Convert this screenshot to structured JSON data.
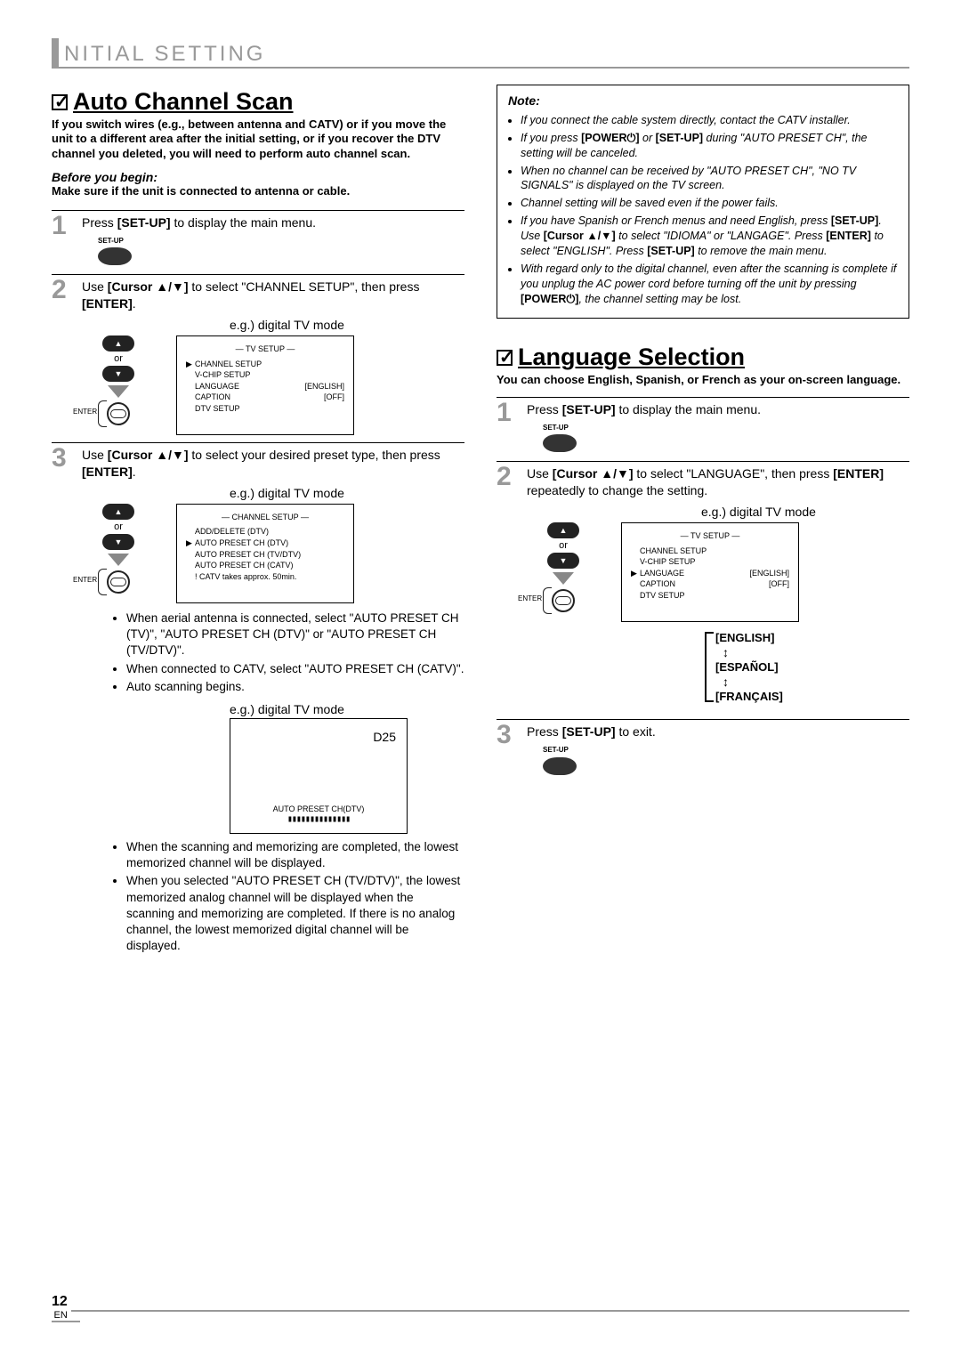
{
  "header": {
    "title": "NITIAL SETTING"
  },
  "page": {
    "number": "12",
    "lang": "EN"
  },
  "left": {
    "section_title": "Auto Channel Scan",
    "intro": "If you switch wires (e.g., between antenna and CATV) or if you move the unit to a different area after the initial setting, or if you recover the DTV channel you deleted, you will need to perform auto channel scan.",
    "before_begin_label": "Before you begin:",
    "before_begin_text": "Make sure if the unit is connected to antenna or cable.",
    "step1": {
      "pre": "Press ",
      "btn": "[SET-UP]",
      "post": " to display the main menu.",
      "setup_label": "SET-UP"
    },
    "step2": {
      "pre": "Use ",
      "btn": "[Cursor ▲/▼]",
      "mid": " to select \"CHANNEL SETUP\", then press ",
      "btn2": "[ENTER]",
      "post": ".",
      "eg": "e.g.) digital TV mode",
      "remote_or": "or",
      "enter_label": "ENTER",
      "screen": {
        "hdr": "—  TV SETUP  —",
        "rows": [
          {
            "mark": "▶",
            "label": "CHANNEL SETUP",
            "val": ""
          },
          {
            "mark": "",
            "label": "V-CHIP  SETUP",
            "val": ""
          },
          {
            "mark": "",
            "label": "LANGUAGE",
            "val": "[ENGLISH]"
          },
          {
            "mark": "",
            "label": "CAPTION",
            "val": "[OFF]"
          },
          {
            "mark": "",
            "label": "DTV SETUP",
            "val": ""
          }
        ]
      }
    },
    "step3": {
      "pre": "Use ",
      "btn": "[Cursor ▲/▼]",
      "mid": " to select your desired preset type, then press ",
      "btn2": "[ENTER]",
      "post": ".",
      "eg": "e.g.) digital TV mode",
      "remote_or": "or",
      "enter_label": "ENTER",
      "screen": {
        "hdr": "—  CHANNEL SETUP  —",
        "rows": [
          {
            "mark": "",
            "label": "ADD/DELETE (DTV)",
            "val": ""
          },
          {
            "mark": "▶",
            "label": "AUTO PRESET CH (DTV)",
            "val": ""
          },
          {
            "mark": "",
            "label": "AUTO PRESET CH (TV/DTV)",
            "val": ""
          },
          {
            "mark": "",
            "label": "AUTO PRESET CH (CATV)",
            "val": ""
          },
          {
            "mark": "",
            "label": "! CATV takes approx. 50min.",
            "val": ""
          }
        ]
      },
      "bullets": [
        "When aerial antenna is connected, select \"AUTO PRESET CH (TV)\", \"AUTO PRESET CH (DTV)\" or \"AUTO PRESET CH (TV/DTV)\".",
        "When connected to CATV, select \"AUTO PRESET CH (CATV)\".",
        "Auto scanning begins."
      ],
      "eg2": "e.g.) digital TV mode",
      "scan": {
        "ch": "D25",
        "label": "AUTO PRESET CH(DTV)",
        "bar": "▮▮▮▮▮▮▮▮▮▮▮▮▮▮"
      },
      "bullets2": [
        "When the scanning and memorizing are completed, the lowest memorized channel will be displayed.",
        "When you selected \"AUTO PRESET CH (TV/DTV)\", the lowest memorized analog channel will be displayed when the scanning and memorizing are completed. If there is no analog channel, the lowest memorized digital channel will be displayed."
      ]
    }
  },
  "right": {
    "note": {
      "hdr": "Note:",
      "items": [
        "If you connect the cable system directly, contact the CATV installer.",
        "If you press <b>[POWER⏻]</b> or <b>[SET-UP]</b> during \"AUTO PRESET CH\", the setting will be canceled.",
        "When no channel can be received by \"AUTO PRESET CH\", \"NO TV SIGNALS\" is displayed on the TV screen.",
        "Channel setting will be saved even if the power fails.",
        "If you have Spanish or French menus and need English, press <b>[SET-UP]</b>. Use <b>[Cursor ▲/▼]</b> to select \"IDIOMA\" or \"LANGAGE\". Press <b>[ENTER]</b> to select \"ENGLISH\". Press <b>[SET-UP]</b> to remove the main menu.",
        "With regard only to the digital channel, even after the scanning is complete if you unplug the AC power cord before turning off the unit by pressing <b>[POWER⏻]</b>, the channel setting may be lost."
      ]
    },
    "section_title": "Language Selection",
    "intro": "You can choose English, Spanish, or French as your on-screen language.",
    "step1": {
      "pre": "Press ",
      "btn": "[SET-UP]",
      "post": " to display the main menu.",
      "setup_label": "SET-UP"
    },
    "step2": {
      "pre": "Use ",
      "btn": "[Cursor ▲/▼]",
      "mid": " to select \"LANGUAGE\", then press ",
      "btn2": "[ENTER]",
      "post": " repeatedly to change the setting.",
      "eg": "e.g.) digital TV mode",
      "remote_or": "or",
      "enter_label": "ENTER",
      "screen": {
        "hdr": "—  TV SETUP  —",
        "rows": [
          {
            "mark": "",
            "label": "CHANNEL SETUP",
            "val": ""
          },
          {
            "mark": "",
            "label": "V-CHIP  SETUP",
            "val": ""
          },
          {
            "mark": "▶",
            "label": "LANGUAGE",
            "val": "[ENGLISH]"
          },
          {
            "mark": "",
            "label": "CAPTION",
            "val": "[OFF]"
          },
          {
            "mark": "",
            "label": "DTV SETUP",
            "val": ""
          }
        ]
      },
      "langs": [
        "[ENGLISH]",
        "[ESPAÑOL]",
        "[FRANÇAIS]"
      ],
      "ud": "↕"
    },
    "step3": {
      "pre": "Press ",
      "btn": "[SET-UP]",
      "post": " to exit.",
      "setup_label": "SET-UP"
    }
  }
}
